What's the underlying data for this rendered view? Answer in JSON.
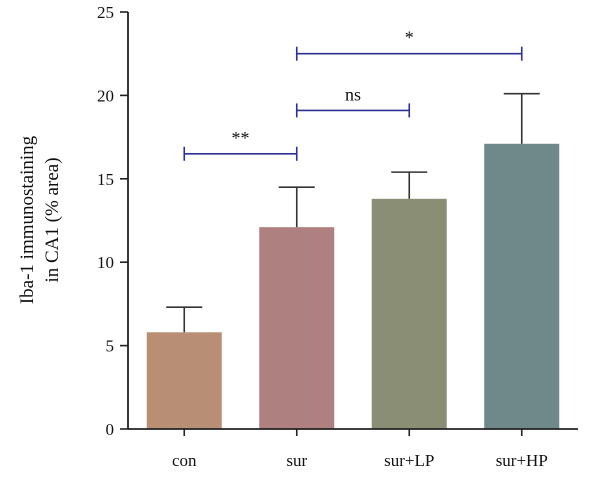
{
  "chart_data": {
    "type": "bar",
    "title": "",
    "xlabel": "",
    "ylabel_lines": [
      "Iba-1 immunostaining",
      "in CA1 (% area)"
    ],
    "categories": [
      "con",
      "sur",
      "sur+LP",
      "sur+HP"
    ],
    "values": [
      5.8,
      12.1,
      13.8,
      17.1
    ],
    "errors": [
      1.5,
      2.4,
      1.6,
      3.0
    ],
    "colors": [
      "#b88f74",
      "#af8080",
      "#8a8e74",
      "#6f898b"
    ],
    "ylim": [
      0,
      25
    ],
    "yticks": [
      0,
      5,
      10,
      15,
      20,
      25
    ],
    "grid": false,
    "significance": [
      {
        "from": 0,
        "to": 1,
        "label": "**",
        "y": 16.5
      },
      {
        "from": 1,
        "to": 2,
        "label": "ns",
        "y": 19.1
      },
      {
        "from": 1,
        "to": 3,
        "label": "*",
        "y": 22.5
      }
    ],
    "bracket_color": "#2e3192",
    "axis_color": "#222222",
    "error_color": "#333333"
  }
}
